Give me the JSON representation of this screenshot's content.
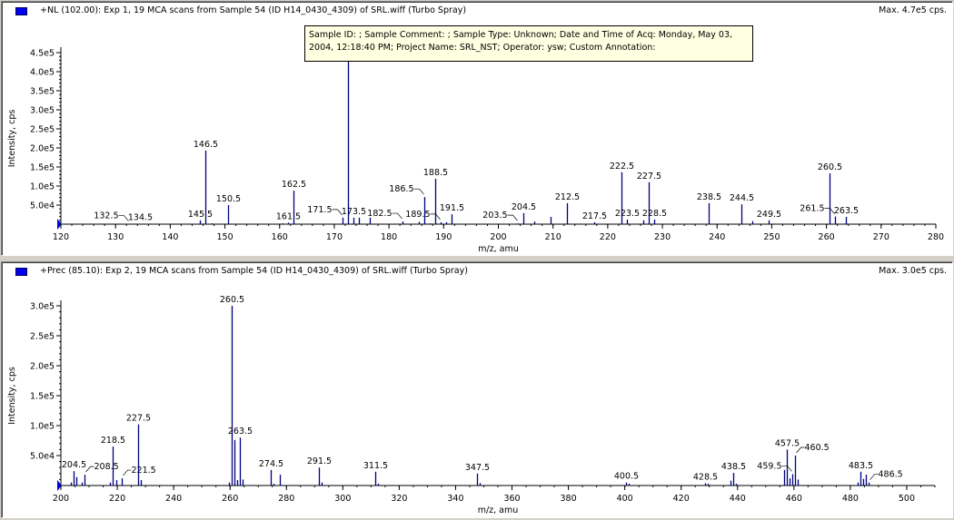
{
  "colors": {
    "peak": "#000080",
    "legend": "#0000ee",
    "tooltip_bg": "#ffffe1",
    "window_bg": "#d4d0c8"
  },
  "icons": {
    "legend": "blue-square-legend-icon",
    "axis_marker": "blue-triangle-marker-icon"
  },
  "tooltip": {
    "line1": "Sample ID:  ;  Sample Comment:  ;  Sample Type:  Unknown;  Date and Time of Acq:  Monday, May 03,",
    "line2": "2004, 12:18:40 PM;  Project Name:  SRL_NST;  Operator:  ysw;  Custom Annotation:"
  },
  "chart_data": [
    {
      "type": "bar",
      "title": "+NL (102.00): Exp 1, 19 MCA scans from Sample 54 (ID H14_0430_4309) of SRL.wiff (Turbo Spray)",
      "max_label": "Max. 4.7e5 cps.",
      "xlabel": "m/z, amu",
      "ylabel": "Intensity, cps",
      "xlim": [
        120,
        280
      ],
      "ylim": [
        0,
        470000
      ],
      "xticks": [
        "120",
        "130",
        "140",
        "150",
        "160",
        "170",
        "180",
        "190",
        "200",
        "210",
        "220",
        "230",
        "240",
        "250",
        "260",
        "270",
        "280"
      ],
      "yticks": [
        "5.0e4",
        "1.0e5",
        "1.5e5",
        "2.0e5",
        "2.5e5",
        "3.0e5",
        "3.5e5",
        "4.0e5",
        "4.5e5"
      ],
      "grid": false,
      "peaks": [
        {
          "x": 132.5,
          "y": 1000,
          "label": "132.5"
        },
        {
          "x": 134.5,
          "y": 1000,
          "label": "134.5"
        },
        {
          "x": 145.5,
          "y": 10000,
          "label": "145.5"
        },
        {
          "x": 146.5,
          "y": 193000,
          "label": "146.5"
        },
        {
          "x": 147.5,
          "y": 2000
        },
        {
          "x": 150.5,
          "y": 50000,
          "label": "150.5"
        },
        {
          "x": 160.5,
          "y": 2000
        },
        {
          "x": 161.5,
          "y": 4000,
          "label": "161.5"
        },
        {
          "x": 162.5,
          "y": 88000,
          "label": "162.5"
        },
        {
          "x": 171.5,
          "y": 17000,
          "label": "171.5"
        },
        {
          "x": 172.5,
          "y": 470000
        },
        {
          "x": 173.5,
          "y": 17000,
          "label": "173.5"
        },
        {
          "x": 174.5,
          "y": 17000
        },
        {
          "x": 176.5,
          "y": 17000
        },
        {
          "x": 182.5,
          "y": 7000,
          "label": "182.5"
        },
        {
          "x": 185.5,
          "y": 6000
        },
        {
          "x": 186.5,
          "y": 71000,
          "label": "186.5"
        },
        {
          "x": 187.5,
          "y": 2000
        },
        {
          "x": 188.5,
          "y": 119000,
          "label": "188.5"
        },
        {
          "x": 189.5,
          "y": 5000,
          "label": "189.5"
        },
        {
          "x": 190.5,
          "y": 5000
        },
        {
          "x": 191.5,
          "y": 26000,
          "label": "191.5"
        },
        {
          "x": 193.5,
          "y": 1000
        },
        {
          "x": 203.5,
          "y": 2000,
          "label": "203.5"
        },
        {
          "x": 204.5,
          "y": 29000,
          "label": "204.5"
        },
        {
          "x": 206.5,
          "y": 7000
        },
        {
          "x": 209.5,
          "y": 19000
        },
        {
          "x": 212.5,
          "y": 55000,
          "label": "212.5"
        },
        {
          "x": 213.5,
          "y": 1000
        },
        {
          "x": 217.5,
          "y": 5000,
          "label": "217.5"
        },
        {
          "x": 222.5,
          "y": 136000,
          "label": "222.5"
        },
        {
          "x": 223.5,
          "y": 12000,
          "label": "223.5"
        },
        {
          "x": 226.5,
          "y": 10000
        },
        {
          "x": 227.5,
          "y": 110000,
          "label": "227.5"
        },
        {
          "x": 228.5,
          "y": 12000,
          "label": "228.5"
        },
        {
          "x": 238.5,
          "y": 55000,
          "label": "238.5"
        },
        {
          "x": 239.5,
          "y": 1000
        },
        {
          "x": 244.5,
          "y": 52000,
          "label": "244.5"
        },
        {
          "x": 246.5,
          "y": 8000
        },
        {
          "x": 249.5,
          "y": 10000,
          "label": "249.5"
        },
        {
          "x": 260.5,
          "y": 133000,
          "label": "260.5"
        },
        {
          "x": 261.5,
          "y": 20000,
          "label": "261.5"
        },
        {
          "x": 263.5,
          "y": 19000,
          "label": "263.5"
        }
      ]
    },
    {
      "type": "bar",
      "title": "+Prec (85.10): Exp 2, 19 MCA scans from Sample 54 (ID H14_0430_4309) of SRL.wiff (Turbo Spray)",
      "max_label": "Max. 3.0e5 cps.",
      "xlabel": "m/z, amu",
      "ylabel": "Intensity, cps",
      "xlim": [
        200,
        510
      ],
      "ylim": [
        0,
        300000
      ],
      "xticks": [
        "200",
        "220",
        "240",
        "260",
        "280",
        "300",
        "320",
        "340",
        "360",
        "380",
        "400",
        "420",
        "440",
        "460",
        "480",
        "500"
      ],
      "yticks": [
        "5.0e4",
        "1.0e5",
        "1.5e5",
        "2.0e5",
        "2.5e5",
        "3.0e5"
      ],
      "grid": false,
      "peaks": [
        {
          "x": 203.5,
          "y": 5000
        },
        {
          "x": 204.5,
          "y": 24000,
          "label": "204.5"
        },
        {
          "x": 205.5,
          "y": 14000
        },
        {
          "x": 207.5,
          "y": 5000
        },
        {
          "x": 208.5,
          "y": 18000,
          "label": "208.5"
        },
        {
          "x": 217.5,
          "y": 5000
        },
        {
          "x": 218.5,
          "y": 65000,
          "label": "218.5"
        },
        {
          "x": 219.5,
          "y": 9000
        },
        {
          "x": 221.5,
          "y": 12000,
          "label": "221.5"
        },
        {
          "x": 227.5,
          "y": 102000,
          "label": "227.5"
        },
        {
          "x": 228.5,
          "y": 9000
        },
        {
          "x": 259.5,
          "y": 5000
        },
        {
          "x": 260.5,
          "y": 300000,
          "label": "260.5"
        },
        {
          "x": 261.5,
          "y": 76000
        },
        {
          "x": 262.5,
          "y": 9000
        },
        {
          "x": 263.5,
          "y": 80000,
          "label": "263.5"
        },
        {
          "x": 264.5,
          "y": 10000
        },
        {
          "x": 274.5,
          "y": 26000,
          "label": "274.5"
        },
        {
          "x": 275.5,
          "y": 3000
        },
        {
          "x": 277.5,
          "y": 18000
        },
        {
          "x": 291.5,
          "y": 30000,
          "label": "291.5"
        },
        {
          "x": 292.5,
          "y": 5000
        },
        {
          "x": 311.5,
          "y": 23000,
          "label": "311.5"
        },
        {
          "x": 312.5,
          "y": 3000
        },
        {
          "x": 347.5,
          "y": 20000,
          "label": "347.5"
        },
        {
          "x": 348.5,
          "y": 4000
        },
        {
          "x": 400.5,
          "y": 5000,
          "label": "400.5"
        },
        {
          "x": 401.5,
          "y": 3000
        },
        {
          "x": 428.5,
          "y": 4000,
          "label": "428.5"
        },
        {
          "x": 429.5,
          "y": 3000
        },
        {
          "x": 437.5,
          "y": 8000
        },
        {
          "x": 438.5,
          "y": 21000,
          "label": "438.5"
        },
        {
          "x": 439.5,
          "y": 3000
        },
        {
          "x": 456.5,
          "y": 26000
        },
        {
          "x": 457.5,
          "y": 60000,
          "label": "457.5"
        },
        {
          "x": 458.5,
          "y": 12000
        },
        {
          "x": 459.5,
          "y": 19000,
          "label": "459.5"
        },
        {
          "x": 460.5,
          "y": 50000,
          "label": "460.5"
        },
        {
          "x": 461.5,
          "y": 10000
        },
        {
          "x": 482.5,
          "y": 5000
        },
        {
          "x": 483.5,
          "y": 23000,
          "label": "483.5"
        },
        {
          "x": 484.5,
          "y": 11000
        },
        {
          "x": 485.5,
          "y": 18000
        },
        {
          "x": 486.5,
          "y": 5000,
          "label": "486.5"
        }
      ]
    }
  ]
}
